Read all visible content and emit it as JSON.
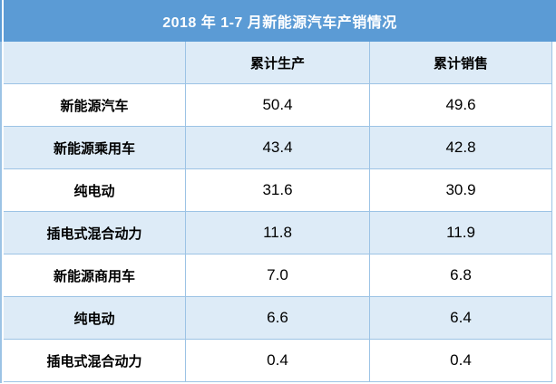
{
  "table": {
    "title": "2018 年 1-7 月新能源汽车产销情况",
    "header": {
      "label_col": "",
      "production": "累计生产",
      "sales": "累计销售"
    },
    "rows": [
      {
        "label": "新能源汽车",
        "production": "50.4",
        "sales": "49.6"
      },
      {
        "label": "新能源乘用车",
        "production": "43.4",
        "sales": "42.8"
      },
      {
        "label": "纯电动",
        "production": "31.6",
        "sales": "30.9"
      },
      {
        "label": "插电式混合动力",
        "production": "11.8",
        "sales": "11.9"
      },
      {
        "label": "新能源商用车",
        "production": "7.0",
        "sales": "6.8"
      },
      {
        "label": "纯电动",
        "production": "6.6",
        "sales": "6.4"
      },
      {
        "label": "插电式混合动力",
        "production": "0.4",
        "sales": "0.4"
      }
    ],
    "colors": {
      "title_bg": "#5B9BD5",
      "title_text": "#FFFFFF",
      "band_bg": "#DDEBF7",
      "border": "#9CC3E5",
      "body_text": "#000000"
    }
  },
  "chart_data": {
    "type": "table",
    "title": "2018 年 1-7 月新能源汽车产销情况",
    "columns": [
      "",
      "累计生产",
      "累计销售"
    ],
    "rows": [
      [
        "新能源汽车",
        50.4,
        49.6
      ],
      [
        "新能源乘用车",
        43.4,
        42.8
      ],
      [
        "纯电动",
        31.6,
        30.9
      ],
      [
        "插电式混合动力",
        11.8,
        11.9
      ],
      [
        "新能源商用车",
        7.0,
        6.8
      ],
      [
        "纯电动",
        6.6,
        6.4
      ],
      [
        "插电式混合动力",
        0.4,
        0.4
      ]
    ],
    "layout_hints": {
      "banded_rows": true,
      "title_position": "top-center",
      "value_alignment": "center"
    }
  }
}
